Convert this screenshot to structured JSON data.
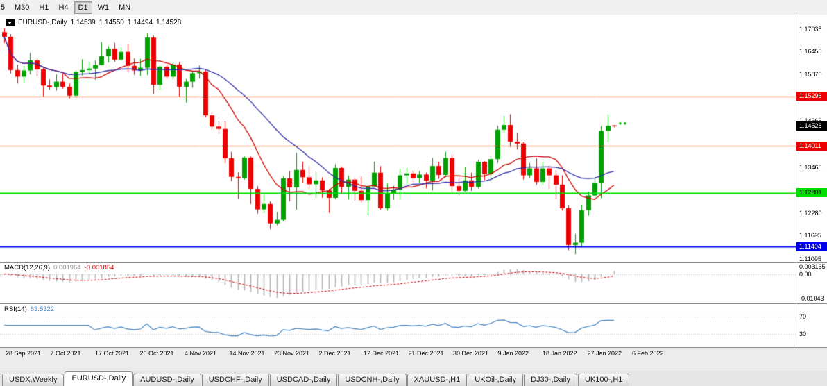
{
  "toolbar": {
    "timeframes": [
      {
        "label": "5",
        "active": false,
        "partial": true
      },
      {
        "label": "M30",
        "active": false,
        "partial": false
      },
      {
        "label": "H1",
        "active": false,
        "partial": false
      },
      {
        "label": "H4",
        "active": false,
        "partial": false
      },
      {
        "label": "D1",
        "active": true,
        "partial": false
      },
      {
        "label": "W1",
        "active": false,
        "partial": false
      },
      {
        "label": "MN",
        "active": false,
        "partial": false
      }
    ]
  },
  "chart_header": {
    "symbol_label": "EURUSD-,Daily",
    "open": "1.14539",
    "high": "1.14550",
    "low": "1.14494",
    "close": "1.14528"
  },
  "price_axis": {
    "ticks": [
      "1.17035",
      "1.16450",
      "1.15870",
      "1.14666",
      "1.13465",
      "1.12280",
      "1.11695",
      "1.11095"
    ],
    "tick_values": [
      1.17035,
      1.1645,
      1.1587,
      1.14666,
      1.13465,
      1.1228,
      1.11695,
      1.11095
    ],
    "badges": [
      {
        "name": "resistance-upper",
        "label": "1.15296",
        "value": 1.15296,
        "bg": "#ee0000",
        "fg": "#ffffff"
      },
      {
        "name": "current-price",
        "label": "1.14528",
        "value": 1.14528,
        "bg": "#000000",
        "fg": "#ffffff"
      },
      {
        "name": "resistance-lower",
        "label": "1.14011",
        "value": 1.14011,
        "bg": "#ee0000",
        "fg": "#ffffff"
      },
      {
        "name": "support-green",
        "label": "1.12801",
        "value": 1.12801,
        "bg": "#00dc00",
        "fg": "#000000"
      },
      {
        "name": "support-blue",
        "label": "1.11404",
        "value": 1.11404,
        "bg": "#0000ee",
        "fg": "#ffffff"
      }
    ]
  },
  "macd_panel": {
    "label": "MACD(12,26,9)",
    "macd_value": "0.001964",
    "signal_value": "-0.001854",
    "axis_labels": [
      "0.003165",
      "0.00",
      "-0.01043"
    ],
    "axis_values": [
      0.003165,
      0,
      -0.01043
    ],
    "histogram_color": "#b4b4b4",
    "signal_color": "#d00000"
  },
  "rsi_panel": {
    "label": "RSI(14)",
    "value": "63.5322",
    "levels": [
      "70",
      "30"
    ],
    "level_values": [
      70,
      30
    ],
    "line_color": "#4080c0"
  },
  "date_axis": {
    "labels": [
      "28 Sep 2021",
      "7 Oct 2021",
      "17 Oct 2021",
      "26 Oct 2021",
      "4 Nov 2021",
      "14 Nov 2021",
      "23 Nov 2021",
      "2 Dec 2021",
      "12 Dec 2021",
      "21 Dec 2021",
      "30 Dec 2021",
      "9 Jan 2022",
      "18 Jan 2022",
      "27 Jan 2022",
      "6 Feb 2022"
    ]
  },
  "tabs": [
    {
      "label": "USDX,Weekly",
      "active": false
    },
    {
      "label": "EURUSD-,Daily",
      "active": true
    },
    {
      "label": "AUDUSD-,Daily",
      "active": false
    },
    {
      "label": "USDCHF-,Daily",
      "active": false
    },
    {
      "label": "USDCAD-,Daily",
      "active": false
    },
    {
      "label": "USDCNH-,Daily",
      "active": false
    },
    {
      "label": "XAUUSD-,H1",
      "active": false
    },
    {
      "label": "UKOil-,Daily",
      "active": false
    },
    {
      "label": "DJ30-,Daily",
      "active": false
    },
    {
      "label": "UK100-,H1",
      "active": false
    }
  ],
  "chart_data": {
    "type": "candlestick",
    "title": "EURUSD-,Daily",
    "ylim": [
      1.11,
      1.1735
    ],
    "up_color": "#00a000",
    "down_color": "#ee0000",
    "overlays": [
      {
        "name": "ma-fast",
        "type": "sma",
        "period": 10,
        "color": "#d00000"
      },
      {
        "name": "ma-slow",
        "type": "sma",
        "period": 21,
        "color": "#2d2daa"
      }
    ],
    "horizontal_lines": [
      {
        "value": 1.15296,
        "color": "#ee0000",
        "width": 1
      },
      {
        "value": 1.14011,
        "color": "#ee0000",
        "width": 1
      },
      {
        "value": 1.12801,
        "color": "#00dc00",
        "width": 2
      },
      {
        "value": 1.11404,
        "color": "#0000ee",
        "width": 2
      }
    ],
    "markers": {
      "name": "price-marker-dots",
      "color": "#00b400",
      "price": 1.1459
    },
    "panels": [
      {
        "type": "macd",
        "params": [
          12,
          26,
          9
        ],
        "current_macd": 0.001964,
        "current_signal": -0.001854,
        "range": [
          -0.01043,
          0.003165
        ]
      },
      {
        "type": "rsi",
        "period": 14,
        "current": 63.5322,
        "levels": [
          70,
          30
        ]
      }
    ],
    "columns": [
      "date",
      "open",
      "high",
      "low",
      "close"
    ],
    "candles": [
      [
        "2021-09-28",
        1.1695,
        1.1705,
        1.1667,
        1.1683
      ],
      [
        "2021-09-29",
        1.1683,
        1.169,
        1.1588,
        1.1597
      ],
      [
        "2021-09-30",
        1.1597,
        1.1611,
        1.1562,
        1.158
      ],
      [
        "2021-10-01",
        1.158,
        1.1608,
        1.1563,
        1.1596
      ],
      [
        "2021-10-04",
        1.1596,
        1.1641,
        1.1586,
        1.1622
      ],
      [
        "2021-10-05",
        1.1622,
        1.1627,
        1.1582,
        1.1599
      ],
      [
        "2021-10-06",
        1.1599,
        1.1602,
        1.1529,
        1.1557
      ],
      [
        "2021-10-07",
        1.1557,
        1.1573,
        1.1546,
        1.1553
      ],
      [
        "2021-10-08",
        1.1553,
        1.1586,
        1.1544,
        1.1567
      ],
      [
        "2021-10-11",
        1.1567,
        1.1588,
        1.1549,
        1.1554
      ],
      [
        "2021-10-12",
        1.1554,
        1.1562,
        1.1524,
        1.1531
      ],
      [
        "2021-10-13",
        1.1531,
        1.1597,
        1.1525,
        1.1592
      ],
      [
        "2021-10-14",
        1.1592,
        1.1625,
        1.1583,
        1.1597
      ],
      [
        "2021-10-15",
        1.1597,
        1.1618,
        1.1588,
        1.1601
      ],
      [
        "2021-10-18",
        1.1601,
        1.1622,
        1.1572,
        1.161
      ],
      [
        "2021-10-19",
        1.161,
        1.1669,
        1.1609,
        1.1633
      ],
      [
        "2021-10-20",
        1.1633,
        1.1659,
        1.1617,
        1.1652
      ],
      [
        "2021-10-21",
        1.1652,
        1.1667,
        1.1618,
        1.1624
      ],
      [
        "2021-10-22",
        1.1624,
        1.1656,
        1.1621,
        1.1644
      ],
      [
        "2021-10-25",
        1.1644,
        1.1664,
        1.1591,
        1.1608
      ],
      [
        "2021-10-26",
        1.1608,
        1.1627,
        1.1585,
        1.1596
      ],
      [
        "2021-10-27",
        1.1596,
        1.1626,
        1.1582,
        1.1603
      ],
      [
        "2021-10-28",
        1.1603,
        1.1692,
        1.1584,
        1.1681
      ],
      [
        "2021-10-29",
        1.1681,
        1.1686,
        1.1535,
        1.1559
      ],
      [
        "2021-11-01",
        1.1559,
        1.1609,
        1.1545,
        1.1606
      ],
      [
        "2021-11-02",
        1.1606,
        1.1612,
        1.1575,
        1.158
      ],
      [
        "2021-11-03",
        1.158,
        1.1617,
        1.1572,
        1.1611
      ],
      [
        "2021-11-04",
        1.1611,
        1.1617,
        1.1527,
        1.1554
      ],
      [
        "2021-11-05",
        1.1554,
        1.1574,
        1.1513,
        1.1567
      ],
      [
        "2021-11-08",
        1.1567,
        1.1593,
        1.1551,
        1.1589
      ],
      [
        "2021-11-09",
        1.1589,
        1.1609,
        1.1575,
        1.1593
      ],
      [
        "2021-11-10",
        1.1593,
        1.1597,
        1.1475,
        1.148
      ],
      [
        "2021-11-11",
        1.148,
        1.1488,
        1.1443,
        1.1451
      ],
      [
        "2021-11-12",
        1.1451,
        1.1465,
        1.1433,
        1.1445
      ],
      [
        "2021-11-15",
        1.1445,
        1.1464,
        1.1356,
        1.1369
      ],
      [
        "2021-11-16",
        1.1369,
        1.1386,
        1.131,
        1.1321
      ],
      [
        "2021-11-17",
        1.1321,
        1.1333,
        1.1264,
        1.1318
      ],
      [
        "2021-11-18",
        1.1318,
        1.1374,
        1.1314,
        1.1371
      ],
      [
        "2021-11-19",
        1.1371,
        1.1374,
        1.125,
        1.129
      ],
      [
        "2021-11-22",
        1.129,
        1.1297,
        1.1226,
        1.1237
      ],
      [
        "2021-11-23",
        1.1237,
        1.1275,
        1.1227,
        1.1251
      ],
      [
        "2021-11-24",
        1.1251,
        1.1258,
        1.1186,
        1.1201
      ],
      [
        "2021-11-25",
        1.1201,
        1.123,
        1.1196,
        1.121
      ],
      [
        "2021-11-26",
        1.121,
        1.1323,
        1.1206,
        1.1317
      ],
      [
        "2021-11-29",
        1.1317,
        1.1336,
        1.1258,
        1.1294
      ],
      [
        "2021-11-30",
        1.1294,
        1.1383,
        1.1236,
        1.1339
      ],
      [
        "2021-12-01",
        1.1339,
        1.136,
        1.1305,
        1.132
      ],
      [
        "2021-12-02",
        1.132,
        1.1348,
        1.129,
        1.1302
      ],
      [
        "2021-12-03",
        1.1302,
        1.1334,
        1.1266,
        1.1312
      ],
      [
        "2021-12-06",
        1.1312,
        1.132,
        1.1267,
        1.1286
      ],
      [
        "2021-12-07",
        1.1286,
        1.129,
        1.1228,
        1.1267
      ],
      [
        "2021-12-08",
        1.1267,
        1.1354,
        1.1263,
        1.1344
      ],
      [
        "2021-12-09",
        1.1344,
        1.1348,
        1.1278,
        1.1295
      ],
      [
        "2021-12-10",
        1.1295,
        1.1324,
        1.1263,
        1.1314
      ],
      [
        "2021-12-13",
        1.1314,
        1.1319,
        1.126,
        1.1285
      ],
      [
        "2021-12-14",
        1.1285,
        1.1322,
        1.1255,
        1.1261
      ],
      [
        "2021-12-15",
        1.1261,
        1.1298,
        1.1222,
        1.1296
      ],
      [
        "2021-12-16",
        1.1296,
        1.136,
        1.1296,
        1.1332
      ],
      [
        "2021-12-17",
        1.1332,
        1.1349,
        1.1236,
        1.124
      ],
      [
        "2021-12-20",
        1.124,
        1.1304,
        1.1234,
        1.1278
      ],
      [
        "2021-12-21",
        1.1278,
        1.1298,
        1.1262,
        1.1288
      ],
      [
        "2021-12-22",
        1.1288,
        1.1343,
        1.1262,
        1.1325
      ],
      [
        "2021-12-23",
        1.1325,
        1.1344,
        1.13,
        1.133
      ],
      [
        "2021-12-24",
        1.133,
        1.1338,
        1.1308,
        1.1318
      ],
      [
        "2021-12-27",
        1.1318,
        1.1336,
        1.1304,
        1.1327
      ],
      [
        "2021-12-28",
        1.1327,
        1.1332,
        1.1291,
        1.1311
      ],
      [
        "2021-12-29",
        1.1311,
        1.137,
        1.1286,
        1.1349
      ],
      [
        "2021-12-30",
        1.1349,
        1.136,
        1.1316,
        1.1326
      ],
      [
        "2021-12-31",
        1.1326,
        1.1386,
        1.1321,
        1.137
      ],
      [
        "2022-01-03",
        1.137,
        1.138,
        1.1279,
        1.1297
      ],
      [
        "2022-01-04",
        1.1297,
        1.1323,
        1.1272,
        1.1285
      ],
      [
        "2022-01-05",
        1.1285,
        1.1347,
        1.1283,
        1.1312
      ],
      [
        "2022-01-06",
        1.1312,
        1.1332,
        1.1285,
        1.1295
      ],
      [
        "2022-01-07",
        1.1295,
        1.1365,
        1.1291,
        1.136
      ],
      [
        "2022-01-10",
        1.136,
        1.1362,
        1.1313,
        1.1328
      ],
      [
        "2022-01-11",
        1.1328,
        1.1375,
        1.1314,
        1.1367
      ],
      [
        "2022-01-12",
        1.1367,
        1.1453,
        1.1357,
        1.1443
      ],
      [
        "2022-01-13",
        1.1443,
        1.1478,
        1.1435,
        1.1455
      ],
      [
        "2022-01-14",
        1.1455,
        1.1483,
        1.1398,
        1.1412
      ],
      [
        "2022-01-17",
        1.1412,
        1.1435,
        1.1392,
        1.1407
      ],
      [
        "2022-01-18",
        1.1407,
        1.1411,
        1.1314,
        1.1325
      ],
      [
        "2022-01-19",
        1.1325,
        1.1357,
        1.1318,
        1.1343
      ],
      [
        "2022-01-20",
        1.1343,
        1.1369,
        1.1301,
        1.1308
      ],
      [
        "2022-01-21",
        1.1308,
        1.136,
        1.13,
        1.1343
      ],
      [
        "2022-01-24",
        1.1343,
        1.1349,
        1.129,
        1.1325
      ],
      [
        "2022-01-25",
        1.1325,
        1.1338,
        1.1263,
        1.1301
      ],
      [
        "2022-01-26",
        1.1301,
        1.1325,
        1.1234,
        1.124
      ],
      [
        "2022-01-27",
        1.124,
        1.1247,
        1.1131,
        1.1145
      ],
      [
        "2022-01-28",
        1.1145,
        1.1174,
        1.1121,
        1.1151
      ],
      [
        "2022-01-31",
        1.1151,
        1.1248,
        1.1141,
        1.1235
      ],
      [
        "2022-02-01",
        1.1235,
        1.1283,
        1.1221,
        1.1273
      ],
      [
        "2022-02-02",
        1.1273,
        1.1321,
        1.1266,
        1.1305
      ],
      [
        "2022-02-03",
        1.1305,
        1.1452,
        1.1266,
        1.144
      ],
      [
        "2022-02-04",
        1.144,
        1.1483,
        1.1411,
        1.1453
      ],
      [
        "2022-02-06",
        1.14539,
        1.1455,
        1.14494,
        1.14528
      ]
    ]
  }
}
